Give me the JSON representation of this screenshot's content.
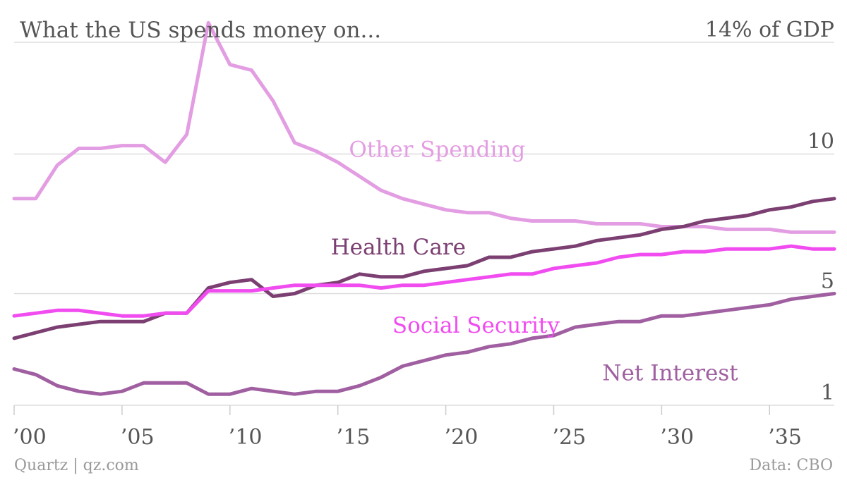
{
  "chart_data": {
    "type": "line",
    "title": "What the US spends money on...",
    "y_top_label": "14% of GDP",
    "source_left": "Quartz | qz.com",
    "source_right": "Data: CBO",
    "xlim": [
      2000,
      2038
    ],
    "ylim": [
      1,
      14
    ],
    "yticks": [
      {
        "value": 1,
        "label": "1"
      },
      {
        "value": 5,
        "label": "5"
      },
      {
        "value": 10,
        "label": "10"
      },
      {
        "value": 14,
        "label": "14% of GDP"
      }
    ],
    "xticks": [
      {
        "value": 2000,
        "label": "’00"
      },
      {
        "value": 2005,
        "label": "’05"
      },
      {
        "value": 2010,
        "label": "’10"
      },
      {
        "value": 2015,
        "label": "’15"
      },
      {
        "value": 2020,
        "label": "’20"
      },
      {
        "value": 2025,
        "label": "’25"
      },
      {
        "value": 2030,
        "label": "’30"
      },
      {
        "value": 2035,
        "label": "’35"
      }
    ],
    "x": [
      2000,
      2001,
      2002,
      2003,
      2004,
      2005,
      2006,
      2007,
      2008,
      2009,
      2010,
      2011,
      2012,
      2013,
      2014,
      2015,
      2016,
      2017,
      2018,
      2019,
      2020,
      2021,
      2022,
      2023,
      2024,
      2025,
      2026,
      2027,
      2028,
      2029,
      2030,
      2031,
      2032,
      2033,
      2034,
      2035,
      2036,
      2037,
      2038
    ],
    "series": [
      {
        "name": "Other Spending",
        "color": "#e39de2",
        "label_x": 2019.6,
        "label_y": 9.9,
        "values": [
          8.4,
          8.4,
          9.6,
          10.2,
          10.2,
          10.3,
          10.3,
          9.7,
          10.7,
          14.7,
          13.2,
          13.0,
          11.9,
          10.4,
          10.1,
          9.7,
          9.2,
          8.7,
          8.4,
          8.2,
          8.0,
          7.9,
          7.9,
          7.7,
          7.6,
          7.6,
          7.6,
          7.5,
          7.5,
          7.5,
          7.4,
          7.4,
          7.4,
          7.3,
          7.3,
          7.3,
          7.2,
          7.2,
          7.2
        ]
      },
      {
        "name": "Health Care",
        "color": "#7b3f72",
        "label_x": 2017.8,
        "label_y": 6.4,
        "values": [
          3.4,
          3.6,
          3.8,
          3.9,
          4.0,
          4.0,
          4.0,
          4.3,
          4.3,
          5.2,
          5.4,
          5.5,
          4.9,
          5.0,
          5.3,
          5.4,
          5.7,
          5.6,
          5.6,
          5.8,
          5.9,
          6.0,
          6.3,
          6.3,
          6.5,
          6.6,
          6.7,
          6.9,
          7.0,
          7.1,
          7.3,
          7.4,
          7.6,
          7.7,
          7.8,
          8.0,
          8.1,
          8.3,
          8.4
        ]
      },
      {
        "name": "Social Security",
        "color": "#f04cf0",
        "label_x": 2021.4,
        "label_y": 3.6,
        "values": [
          4.2,
          4.3,
          4.4,
          4.4,
          4.3,
          4.2,
          4.2,
          4.3,
          4.3,
          5.1,
          5.1,
          5.1,
          5.2,
          5.3,
          5.3,
          5.3,
          5.3,
          5.2,
          5.3,
          5.3,
          5.4,
          5.5,
          5.6,
          5.7,
          5.7,
          5.9,
          6.0,
          6.1,
          6.3,
          6.4,
          6.4,
          6.5,
          6.5,
          6.6,
          6.6,
          6.6,
          6.7,
          6.6,
          6.6
        ]
      },
      {
        "name": "Net Interest",
        "color": "#a05fa0",
        "label_x": 2030.4,
        "label_y": 1.9,
        "values": [
          2.3,
          2.1,
          1.7,
          1.5,
          1.4,
          1.5,
          1.8,
          1.8,
          1.8,
          1.4,
          1.4,
          1.6,
          1.5,
          1.4,
          1.5,
          1.5,
          1.7,
          2.0,
          2.4,
          2.6,
          2.8,
          2.9,
          3.1,
          3.2,
          3.4,
          3.5,
          3.8,
          3.9,
          4.0,
          4.0,
          4.2,
          4.2,
          4.3,
          4.4,
          4.5,
          4.6,
          4.8,
          4.9,
          5.0
        ]
      }
    ],
    "grid": true,
    "legend": "inline-labels"
  }
}
